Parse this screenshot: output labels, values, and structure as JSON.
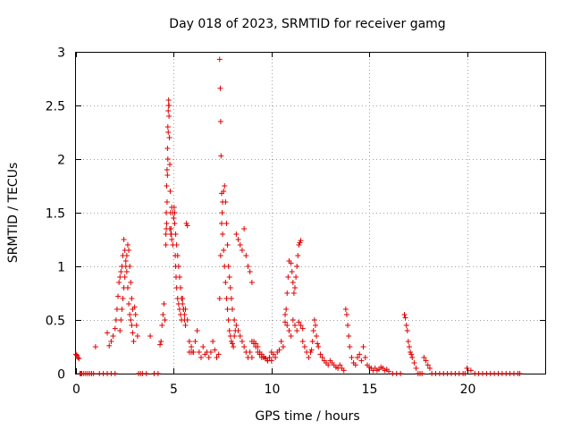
{
  "chart_data": {
    "type": "scatter",
    "title": "Day 018 of 2023, SRMTID for receiver gamg",
    "xlabel": "GPS time / hours",
    "ylabel": "SRMTID / TECUs",
    "xlim": [
      0,
      24
    ],
    "ylim": [
      0,
      3
    ],
    "xticks": [
      0,
      5,
      10,
      15,
      20
    ],
    "xtick_labels": [
      "0",
      "5",
      "10",
      "15",
      "20"
    ],
    "yticks": [
      0,
      0.5,
      1,
      1.5,
      2,
      2.5,
      3
    ],
    "ytick_labels": [
      "0",
      "0.5",
      "1",
      "1.5",
      "2",
      "2.5",
      "3"
    ],
    "grid": true,
    "marker": "+",
    "color": "#e00000",
    "series": [
      {
        "name": "SRMTID",
        "x": [
          0.0,
          0.05,
          0.1,
          0.15,
          0.2,
          0.25,
          0.3,
          0.4,
          0.5,
          0.6,
          0.7,
          0.8,
          0.9,
          1.0,
          1.2,
          1.4,
          1.6,
          1.8,
          2.0,
          1.6,
          1.7,
          1.8,
          1.9,
          2.0,
          2.05,
          2.1,
          2.15,
          2.2,
          2.25,
          2.3,
          2.35,
          2.4,
          2.45,
          2.5,
          2.55,
          2.6,
          2.65,
          2.7,
          2.75,
          2.8,
          2.85,
          2.9,
          2.95,
          3.0,
          3.05,
          3.1,
          3.15,
          3.2,
          3.3,
          3.4,
          3.6,
          3.8,
          4.0,
          4.2,
          2.25,
          2.3,
          2.35,
          2.4,
          2.45,
          2.5,
          2.55,
          2.6,
          2.65,
          2.7,
          2.75,
          2.8,
          2.85,
          2.9,
          4.3,
          4.35,
          4.4,
          4.45,
          4.5,
          4.55,
          4.6,
          4.62,
          4.64,
          4.66,
          4.68,
          4.7,
          4.72,
          4.74,
          4.76,
          4.78,
          4.8,
          4.82,
          4.84,
          4.86,
          4.88,
          4.9,
          4.95,
          5.0,
          5.05,
          5.1,
          5.15,
          5.2,
          5.25,
          5.3,
          5.35,
          5.4,
          5.45,
          5.5,
          5.55,
          5.6,
          5.7,
          5.8,
          5.9,
          6.0,
          4.6,
          4.62,
          4.64,
          4.66,
          4.68,
          4.7,
          4.72,
          4.74,
          4.76,
          4.8,
          4.85,
          4.9,
          4.95,
          5.0,
          5.02,
          5.05,
          5.08,
          5.1,
          5.12,
          5.15,
          5.2,
          5.25,
          5.3,
          5.35,
          5.4,
          5.45,
          5.5,
          5.55,
          5.6,
          5.65,
          5.7,
          5.8,
          5.9,
          6.0,
          6.0,
          6.1,
          6.2,
          6.3,
          6.4,
          6.5,
          6.6,
          6.7,
          6.8,
          6.9,
          7.0,
          7.1,
          7.2,
          7.3,
          7.35,
          7.4,
          7.45,
          7.5,
          7.55,
          7.6,
          7.65,
          7.7,
          7.75,
          7.8,
          7.85,
          7.9,
          7.95,
          8.0,
          8.1,
          8.2,
          8.3,
          8.4,
          8.5,
          8.6,
          8.7,
          8.8,
          8.9,
          9.0,
          7.35,
          7.38,
          7.4,
          7.42,
          7.45,
          7.48,
          7.5,
          7.55,
          7.6,
          7.65,
          7.7,
          7.75,
          7.8,
          7.85,
          7.9,
          7.95,
          8.0,
          8.05,
          8.1,
          8.15,
          8.2,
          8.3,
          8.4,
          8.5,
          8.6,
          8.7,
          8.8,
          8.9,
          9.0,
          9.1,
          9.2,
          9.3,
          9.4,
          9.5,
          9.6,
          9.7,
          9.8,
          9.9,
          10.0,
          9.0,
          9.1,
          9.2,
          9.3,
          9.4,
          9.5,
          9.6,
          9.7,
          9.8,
          9.9,
          10.0,
          10.1,
          10.2,
          10.3,
          10.4,
          10.5,
          10.6,
          10.7,
          10.8,
          10.9,
          11.0,
          11.1,
          11.2,
          11.3,
          11.4,
          11.5,
          11.6,
          10.7,
          10.75,
          10.8,
          10.85,
          10.9,
          11.0,
          11.05,
          11.1,
          11.15,
          11.2,
          11.25,
          11.3,
          11.35,
          11.4,
          11.45,
          11.5,
          11.6,
          11.7,
          11.8,
          11.9,
          12.0,
          12.05,
          12.1,
          12.15,
          12.2,
          12.25,
          12.3,
          12.35,
          12.4,
          12.5,
          12.6,
          12.7,
          12.8,
          12.9,
          13.0,
          13.1,
          13.2,
          13.3,
          13.4,
          13.5,
          13.6,
          13.7,
          13.8,
          13.85,
          13.9,
          13.95,
          14.0,
          14.1,
          14.2,
          14.3,
          14.4,
          14.5,
          14.6,
          14.7,
          14.8,
          14.9,
          15.0,
          15.1,
          15.2,
          15.3,
          15.4,
          15.5,
          15.6,
          15.7,
          15.8,
          15.9,
          16.0,
          16.2,
          16.4,
          16.6,
          16.8,
          16.85,
          16.9,
          16.95,
          17.0,
          17.05,
          17.1,
          17.15,
          17.2,
          17.3,
          17.4,
          17.5,
          17.6,
          17.7,
          17.8,
          17.9,
          18.0,
          18.1,
          18.2,
          18.4,
          18.6,
          18.8,
          19.0,
          19.2,
          19.4,
          19.6,
          19.8,
          19.9,
          20.0,
          20.2,
          20.4,
          20.6,
          20.8,
          21.0,
          21.2,
          21.4,
          21.6,
          21.8,
          22.0,
          22.2,
          22.4,
          22.6,
          22.7
        ],
        "y": [
          0.18,
          0.17,
          0.15,
          0.14,
          0.0,
          0.0,
          0.0,
          0.0,
          0.0,
          0.0,
          0.0,
          0.0,
          0.0,
          0.25,
          0.0,
          0.0,
          0.0,
          0.0,
          0.0,
          0.38,
          0.26,
          0.3,
          0.35,
          0.42,
          0.5,
          0.6,
          0.72,
          0.85,
          0.9,
          0.95,
          1.0,
          1.1,
          1.25,
          1.15,
          1.05,
          0.95,
          0.8,
          0.65,
          0.55,
          0.5,
          0.45,
          0.38,
          0.3,
          0.62,
          0.55,
          0.45,
          0.35,
          0.0,
          0.0,
          0.0,
          0.0,
          0.35,
          0.0,
          0.0,
          0.4,
          0.5,
          0.6,
          0.7,
          0.8,
          0.9,
          1.0,
          1.1,
          1.2,
          1.15,
          1.0,
          0.85,
          0.7,
          0.6,
          0.27,
          0.3,
          0.45,
          0.55,
          0.65,
          0.5,
          1.2,
          1.5,
          1.75,
          1.9,
          2.1,
          2.3,
          2.45,
          2.55,
          2.5,
          2.2,
          1.95,
          1.7,
          1.5,
          1.35,
          1.3,
          1.55,
          1.5,
          1.45,
          1.4,
          1.3,
          1.2,
          1.1,
          1.0,
          0.9,
          0.8,
          0.7,
          0.65,
          0.6,
          0.55,
          0.6,
          0.5,
          0.2,
          0.2,
          0.2,
          1.3,
          1.35,
          1.4,
          1.6,
          1.85,
          2.0,
          2.25,
          2.5,
          2.4,
          1.35,
          1.3,
          1.25,
          1.2,
          1.45,
          1.55,
          1.5,
          1.1,
          1.0,
          0.9,
          0.8,
          0.7,
          0.65,
          0.6,
          0.55,
          0.5,
          0.7,
          0.6,
          0.5,
          0.45,
          1.4,
          1.38,
          0.3,
          0.25,
          0.2,
          0.2,
          0.3,
          0.4,
          0.2,
          0.15,
          0.25,
          0.18,
          0.2,
          0.15,
          0.2,
          0.3,
          0.22,
          0.15,
          0.18,
          0.7,
          1.1,
          1.4,
          1.6,
          1.7,
          1.75,
          1.6,
          1.4,
          1.2,
          1.0,
          0.9,
          0.8,
          0.7,
          0.6,
          0.5,
          0.45,
          0.4,
          0.35,
          0.3,
          0.25,
          0.2,
          0.15,
          0.2,
          0.15,
          2.93,
          2.66,
          2.35,
          2.03,
          1.68,
          1.5,
          1.3,
          1.15,
          1.0,
          0.85,
          0.7,
          0.6,
          0.5,
          0.4,
          0.35,
          0.3,
          0.28,
          0.25,
          0.35,
          0.4,
          1.3,
          1.25,
          1.2,
          1.15,
          1.35,
          1.1,
          1.0,
          0.95,
          0.85,
          0.3,
          0.28,
          0.25,
          0.2,
          0.18,
          0.15,
          0.14,
          0.12,
          0.15,
          0.12,
          0.3,
          0.28,
          0.25,
          0.2,
          0.18,
          0.15,
          0.16,
          0.14,
          0.12,
          0.15,
          0.2,
          0.18,
          0.15,
          0.2,
          0.22,
          0.3,
          0.25,
          0.48,
          0.45,
          0.4,
          0.35,
          0.5,
          0.45,
          0.4,
          0.48,
          0.45,
          0.42,
          0.55,
          0.6,
          0.75,
          0.9,
          1.05,
          1.03,
          0.95,
          0.85,
          0.75,
          0.8,
          0.9,
          1.0,
          1.1,
          1.2,
          1.22,
          1.24,
          0.3,
          0.25,
          0.2,
          0.15,
          0.2,
          0.22,
          0.3,
          0.4,
          0.5,
          0.45,
          0.35,
          0.28,
          0.25,
          0.18,
          0.15,
          0.12,
          0.1,
          0.08,
          0.12,
          0.1,
          0.08,
          0.06,
          0.05,
          0.08,
          0.05,
          0.03,
          0.6,
          0.55,
          0.45,
          0.35,
          0.25,
          0.15,
          0.1,
          0.08,
          0.15,
          0.18,
          0.12,
          0.25,
          0.15,
          0.08,
          0.06,
          0.05,
          0.03,
          0.05,
          0.03,
          0.04,
          0.06,
          0.05,
          0.03,
          0.04,
          0.02,
          0.0,
          0.0,
          0.0,
          0.55,
          0.52,
          0.45,
          0.4,
          0.3,
          0.25,
          0.2,
          0.18,
          0.15,
          0.1,
          0.05,
          0.0,
          0.0,
          0.0,
          0.15,
          0.12,
          0.08,
          0.05,
          0.0,
          0.0,
          0.0,
          0.0,
          0.0,
          0.0,
          0.0,
          0.0,
          0.0,
          0.0,
          0.05,
          0.03,
          0.0,
          0.0,
          0.0,
          0.0,
          0.0,
          0.0,
          0.0,
          0.0,
          0.0,
          0.0,
          0.0,
          0.0,
          0.0
        ]
      }
    ]
  }
}
